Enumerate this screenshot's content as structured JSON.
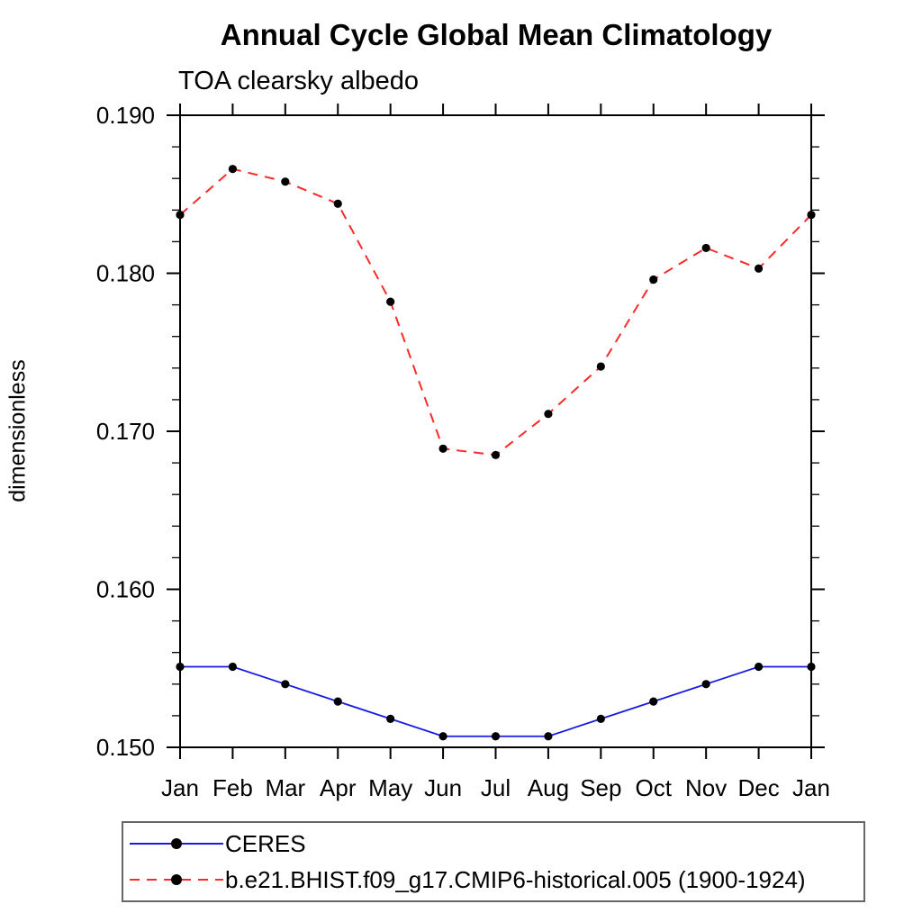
{
  "chart_data": {
    "type": "line",
    "title": "Annual Cycle Global Mean Climatology",
    "subtitle": "TOA clearsky albedo",
    "ylabel": "dimensionless",
    "xlabel": "",
    "x_tick_labels": [
      "Jan",
      "Feb",
      "Mar",
      "Apr",
      "May",
      "Jun",
      "Jul",
      "Aug",
      "Sep",
      "Oct",
      "Nov",
      "Dec",
      "Jan"
    ],
    "y_tick_labels": [
      "0.150",
      "0.160",
      "0.170",
      "0.180",
      "0.190"
    ],
    "y_ticks": [
      0.15,
      0.16,
      0.17,
      0.18,
      0.19
    ],
    "ylim": [
      0.15,
      0.19
    ],
    "y_minor_step": 0.002,
    "grid": false,
    "legend_position": "below-left",
    "axis_color": "#000000",
    "series": [
      {
        "name": "CERES",
        "color": "#1a1ae0",
        "line_style": "solid",
        "marker": "filled-circle",
        "marker_color": "#000000",
        "values": [
          0.1551,
          0.1551,
          0.154,
          0.1529,
          0.1518,
          0.1507,
          0.1507,
          0.1507,
          0.1518,
          0.1529,
          0.154,
          0.1551,
          0.1551
        ]
      },
      {
        "name": "b.e21.BHIST.f09_g17.CMIP6-historical.005 (1900-1924)",
        "color": "#fa2a2a",
        "line_style": "dashed",
        "marker": "filled-circle",
        "marker_color": "#000000",
        "values": [
          0.1837,
          0.1866,
          0.1858,
          0.1844,
          0.1782,
          0.1689,
          0.1685,
          0.1711,
          0.1741,
          0.1796,
          0.1816,
          0.1803,
          0.1837
        ]
      }
    ]
  }
}
